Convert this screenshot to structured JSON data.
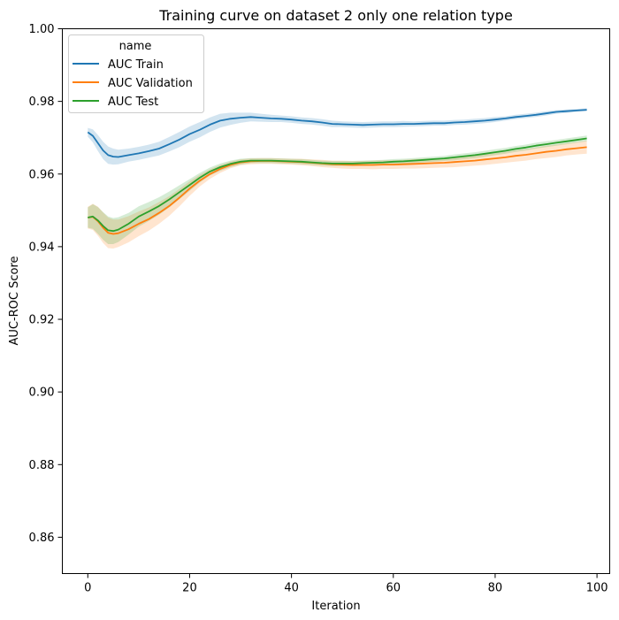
{
  "chart_data": {
    "type": "line",
    "title": "Training curve on dataset 2 only one relation type",
    "xlabel": "Iteration",
    "ylabel": "AUC-ROC Score",
    "xlim": [
      -5,
      102.5
    ],
    "ylim": [
      0.85,
      1.0
    ],
    "x_ticks": [
      0,
      20,
      40,
      60,
      80,
      100
    ],
    "y_ticks": [
      0.86,
      0.88,
      0.9,
      0.92,
      0.94,
      0.96,
      0.98,
      1.0
    ],
    "x_tick_labels": [
      "0",
      "20",
      "40",
      "60",
      "80",
      "100"
    ],
    "y_tick_labels": [
      "0.86",
      "0.88",
      "0.90",
      "0.92",
      "0.94",
      "0.96",
      "0.98",
      "1.00"
    ],
    "grid": false,
    "legend": {
      "title": "name",
      "position": "top-left"
    },
    "series": [
      {
        "name": "AUC Train",
        "color": "#1f77b4",
        "x": [
          0,
          1,
          2,
          3,
          4,
          5,
          6,
          8,
          10,
          12,
          14,
          16,
          18,
          20,
          22,
          24,
          26,
          28,
          30,
          32,
          34,
          36,
          38,
          40,
          42,
          44,
          46,
          48,
          50,
          52,
          54,
          56,
          58,
          60,
          62,
          64,
          66,
          68,
          70,
          72,
          74,
          76,
          78,
          80,
          82,
          84,
          86,
          88,
          90,
          92,
          94,
          96,
          98
        ],
        "y": [
          0.9715,
          0.9705,
          0.9685,
          0.9665,
          0.9652,
          0.9648,
          0.9647,
          0.9652,
          0.9657,
          0.9663,
          0.967,
          0.9682,
          0.9695,
          0.971,
          0.9722,
          0.9736,
          0.9747,
          0.9752,
          0.9755,
          0.9757,
          0.9755,
          0.9753,
          0.9752,
          0.975,
          0.9747,
          0.9745,
          0.9742,
          0.9738,
          0.9737,
          0.9736,
          0.9735,
          0.9736,
          0.9737,
          0.9737,
          0.9738,
          0.9738,
          0.9739,
          0.974,
          0.974,
          0.9742,
          0.9743,
          0.9745,
          0.9747,
          0.975,
          0.9753,
          0.9757,
          0.976,
          0.9763,
          0.9767,
          0.9771,
          0.9773,
          0.9775,
          0.9777
        ],
        "ci_halfwidth": [
          0.0012,
          0.0018,
          0.0022,
          0.0024,
          0.0024,
          0.0022,
          0.002,
          0.0018,
          0.0018,
          0.0018,
          0.0019,
          0.002,
          0.0021,
          0.0021,
          0.0021,
          0.002,
          0.0019,
          0.0017,
          0.0014,
          0.0012,
          0.0011,
          0.001,
          0.0009,
          0.0009,
          0.0009,
          0.0009,
          0.0009,
          0.0009,
          0.0008,
          0.0008,
          0.0008,
          0.0008,
          0.0008,
          0.0008,
          0.0008,
          0.0007,
          0.0007,
          0.0007,
          0.0007,
          0.0007,
          0.0007,
          0.0007,
          0.0007,
          0.0007,
          0.0006,
          0.0006,
          0.0006,
          0.0006,
          0.0006,
          0.0005,
          0.0005,
          0.0004,
          0.0004
        ]
      },
      {
        "name": "AUC Validation",
        "color": "#ff7f0e",
        "x": [
          0,
          1,
          2,
          3,
          4,
          5,
          6,
          8,
          10,
          12,
          14,
          16,
          18,
          20,
          22,
          24,
          26,
          28,
          30,
          32,
          34,
          36,
          38,
          40,
          42,
          44,
          46,
          48,
          50,
          52,
          54,
          56,
          58,
          60,
          62,
          64,
          66,
          68,
          70,
          72,
          74,
          76,
          78,
          80,
          82,
          84,
          86,
          88,
          90,
          92,
          94,
          96,
          98
        ],
        "y": [
          0.948,
          0.9482,
          0.947,
          0.9452,
          0.9438,
          0.9435,
          0.9437,
          0.9448,
          0.9463,
          0.9476,
          0.9493,
          0.9512,
          0.9535,
          0.956,
          0.9582,
          0.96,
          0.9614,
          0.9625,
          0.9632,
          0.9635,
          0.9636,
          0.9636,
          0.9635,
          0.9634,
          0.9633,
          0.9631,
          0.9629,
          0.9627,
          0.9626,
          0.9625,
          0.9625,
          0.9625,
          0.9626,
          0.9626,
          0.9627,
          0.9628,
          0.9629,
          0.963,
          0.9631,
          0.9633,
          0.9635,
          0.9637,
          0.964,
          0.9643,
          0.9646,
          0.965,
          0.9653,
          0.9657,
          0.9661,
          0.9664,
          0.9668,
          0.9671,
          0.9674
        ],
        "ci_halfwidth": [
          0.003,
          0.0036,
          0.004,
          0.0042,
          0.0042,
          0.004,
          0.0038,
          0.0036,
          0.0034,
          0.0032,
          0.003,
          0.0027,
          0.0024,
          0.002,
          0.0016,
          0.0013,
          0.0011,
          0.0009,
          0.0008,
          0.0008,
          0.0008,
          0.0008,
          0.0008,
          0.0008,
          0.0009,
          0.0009,
          0.001,
          0.001,
          0.0011,
          0.0011,
          0.0011,
          0.0012,
          0.0012,
          0.0012,
          0.0012,
          0.0013,
          0.0013,
          0.0013,
          0.0013,
          0.0014,
          0.0014,
          0.0014,
          0.0015,
          0.0015,
          0.0015,
          0.0016,
          0.0016,
          0.0016,
          0.0017,
          0.0017,
          0.0017,
          0.0017,
          0.0018
        ]
      },
      {
        "name": "AUC Test",
        "color": "#2ca02c",
        "x": [
          0,
          1,
          2,
          3,
          4,
          5,
          6,
          8,
          10,
          12,
          14,
          16,
          18,
          20,
          22,
          24,
          26,
          28,
          30,
          32,
          34,
          36,
          38,
          40,
          42,
          44,
          46,
          48,
          50,
          52,
          54,
          56,
          58,
          60,
          62,
          64,
          66,
          68,
          70,
          72,
          74,
          76,
          78,
          80,
          82,
          84,
          86,
          88,
          90,
          92,
          94,
          96,
          98
        ],
        "y": [
          0.948,
          0.9483,
          0.9472,
          0.9457,
          0.9445,
          0.9443,
          0.9447,
          0.9463,
          0.9483,
          0.9497,
          0.9512,
          0.953,
          0.955,
          0.957,
          0.959,
          0.9607,
          0.9619,
          0.9628,
          0.9634,
          0.9637,
          0.9637,
          0.9637,
          0.9636,
          0.9635,
          0.9634,
          0.9632,
          0.963,
          0.9629,
          0.9629,
          0.9629,
          0.963,
          0.9631,
          0.9632,
          0.9634,
          0.9635,
          0.9637,
          0.9639,
          0.9641,
          0.9643,
          0.9646,
          0.9649,
          0.9652,
          0.9656,
          0.966,
          0.9664,
          0.9669,
          0.9673,
          0.9678,
          0.9682,
          0.9686,
          0.969,
          0.9694,
          0.9698
        ],
        "ci_halfwidth": [
          0.0028,
          0.0034,
          0.0037,
          0.0038,
          0.0038,
          0.0036,
          0.0034,
          0.003,
          0.0028,
          0.0026,
          0.0024,
          0.0022,
          0.0019,
          0.0016,
          0.0013,
          0.0011,
          0.001,
          0.0009,
          0.0008,
          0.0007,
          0.0007,
          0.0007,
          0.0007,
          0.0007,
          0.0007,
          0.0007,
          0.0007,
          0.0007,
          0.0007,
          0.0007,
          0.0007,
          0.0007,
          0.0007,
          0.0007,
          0.0007,
          0.0007,
          0.0007,
          0.0007,
          0.0007,
          0.0008,
          0.0008,
          0.0008,
          0.0008,
          0.0008,
          0.0008,
          0.0008,
          0.0008,
          0.0008,
          0.0008,
          0.0008,
          0.0008,
          0.0008,
          0.0008
        ]
      }
    ]
  }
}
